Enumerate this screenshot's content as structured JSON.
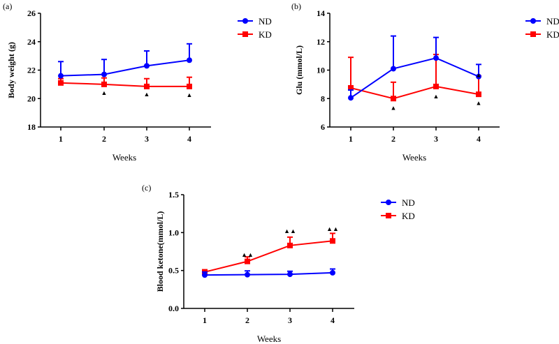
{
  "chart_data": [
    {
      "panel_label": "(a)",
      "type": "line",
      "xlabel": "Weeks",
      "ylabel": "Body weight (g)",
      "x": [
        1,
        2,
        3,
        4
      ],
      "ylim": [
        18,
        26
      ],
      "yticks": [
        18,
        20,
        22,
        24,
        26
      ],
      "legend": "top-right",
      "series": [
        {
          "name": "ND",
          "color": "#0000ff",
          "marker": "circle",
          "values": [
            21.6,
            21.7,
            22.3,
            22.7
          ],
          "error_up": [
            1.0,
            1.05,
            1.05,
            1.15
          ]
        },
        {
          "name": "KD",
          "color": "#ff0000",
          "marker": "square",
          "values": [
            21.1,
            21.0,
            20.85,
            20.85
          ],
          "error_up": [
            0.3,
            0.45,
            0.55,
            0.65
          ]
        }
      ],
      "annotations": [
        {
          "x": 2,
          "y": 20.45,
          "symbol": "▲"
        },
        {
          "x": 3,
          "y": 20.35,
          "symbol": "▲"
        },
        {
          "x": 4,
          "y": 20.3,
          "symbol": "▲"
        }
      ]
    },
    {
      "panel_label": "(b)",
      "type": "line",
      "xlabel": "Weeks",
      "ylabel": "Glu (mmol/L)",
      "x": [
        1,
        2,
        3,
        4
      ],
      "ylim": [
        6,
        14
      ],
      "yticks": [
        6,
        8,
        10,
        12,
        14
      ],
      "legend": "top-right",
      "series": [
        {
          "name": "ND",
          "color": "#0000ff",
          "marker": "circle",
          "values": [
            8.05,
            10.1,
            10.85,
            9.55
          ],
          "error_up": [
            0.55,
            2.3,
            1.45,
            0.85
          ]
        },
        {
          "name": "KD",
          "color": "#ff0000",
          "marker": "square",
          "values": [
            8.75,
            8.0,
            8.85,
            8.3
          ],
          "error_up": [
            2.15,
            1.15,
            2.25,
            1.3
          ]
        }
      ],
      "annotations": [
        {
          "x": 2,
          "y": 7.4,
          "symbol": "▲"
        },
        {
          "x": 3,
          "y": 8.2,
          "symbol": "▲"
        },
        {
          "x": 4,
          "y": 7.75,
          "symbol": "▲"
        },
        {
          "x": 4,
          "y": 9.7,
          "symbol": "▲"
        }
      ]
    },
    {
      "panel_label": "(c)",
      "type": "line",
      "xlabel": "Weeks",
      "ylabel": "Blood ketone(mmol/L)",
      "x": [
        1,
        2,
        3,
        4
      ],
      "ylim": [
        0,
        1.5
      ],
      "yticks": [
        "0.0",
        "0.5",
        "1.0",
        "1.5"
      ],
      "legend": "top-right",
      "series": [
        {
          "name": "ND",
          "color": "#0000ff",
          "marker": "circle",
          "values": [
            0.44,
            0.445,
            0.45,
            0.47
          ],
          "error_up": [
            0.04,
            0.05,
            0.04,
            0.05
          ]
        },
        {
          "name": "KD",
          "color": "#ff0000",
          "marker": "square",
          "values": [
            0.48,
            0.62,
            0.83,
            0.89
          ],
          "error_up": [
            0.03,
            0.06,
            0.11,
            0.1
          ]
        }
      ],
      "annotations": [
        {
          "x": 2,
          "y": 0.72,
          "symbol": "▲▲"
        },
        {
          "x": 3,
          "y": 1.03,
          "symbol": "▲▲"
        },
        {
          "x": 4,
          "y": 1.06,
          "symbol": "▲▲"
        }
      ]
    }
  ]
}
